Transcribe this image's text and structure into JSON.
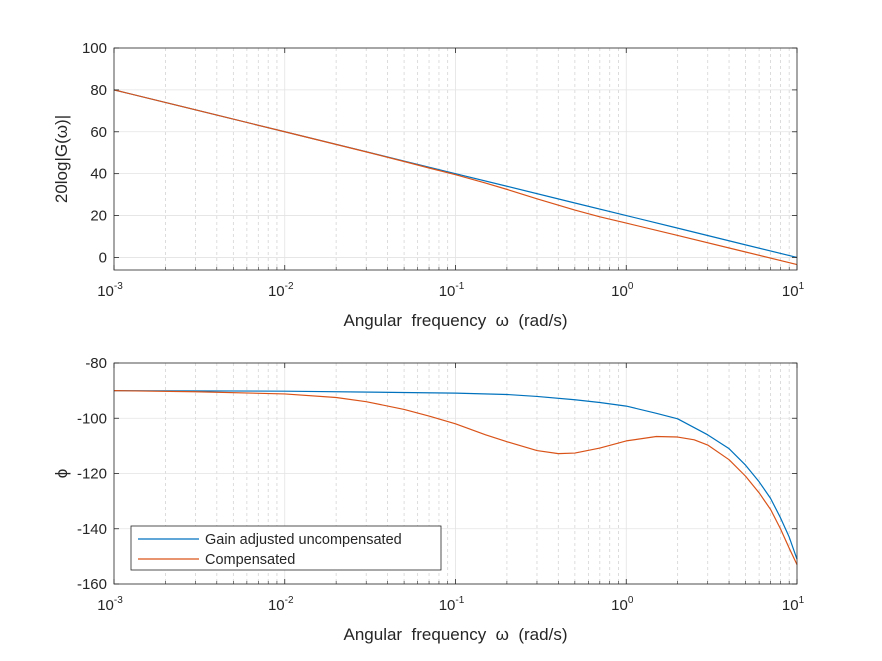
{
  "chart_data": [
    {
      "type": "line",
      "xscale": "log",
      "xlim": [
        0.001,
        10
      ],
      "ylim": [
        -6,
        100
      ],
      "xlabel": "Angular  frequency  ω  (rad/s)",
      "ylabel": "20log|G(ω)|",
      "x_ticks": [
        {
          "base": "10",
          "exp": "-3"
        },
        {
          "base": "10",
          "exp": "-2"
        },
        {
          "base": "10",
          "exp": "-1"
        },
        {
          "base": "10",
          "exp": "0"
        },
        {
          "base": "10",
          "exp": "1"
        }
      ],
      "y_ticks": [
        0,
        20,
        40,
        60,
        80,
        100
      ],
      "y_tick_labels": [
        "0",
        "20",
        "40",
        "60",
        "80",
        "100"
      ],
      "grid": true,
      "series": [
        {
          "color": "#0072BD",
          "x": [
            0.001,
            0.003,
            0.01,
            0.03,
            0.05,
            0.1,
            0.2,
            0.5,
            1,
            2,
            5,
            10
          ],
          "y": [
            80,
            70.5,
            60,
            50.5,
            46,
            40,
            34,
            26,
            20,
            14,
            6,
            0
          ]
        },
        {
          "color": "#D95319",
          "x": [
            0.001,
            0.003,
            0.01,
            0.03,
            0.05,
            0.07,
            0.1,
            0.15,
            0.2,
            0.3,
            0.5,
            0.7,
            1,
            2,
            5,
            10
          ],
          "y": [
            80,
            70.5,
            60,
            50.4,
            45.8,
            42.7,
            39.5,
            35.5,
            32.5,
            28,
            22.6,
            19.4,
            16.4,
            10.5,
            2.6,
            -3.4
          ]
        }
      ]
    },
    {
      "type": "line",
      "xscale": "log",
      "xlim": [
        0.001,
        10
      ],
      "ylim": [
        -160,
        -80
      ],
      "xlabel": "Angular  frequency  ω  (rad/s)",
      "ylabel": "ϕ",
      "x_ticks": [
        {
          "base": "10",
          "exp": "-3"
        },
        {
          "base": "10",
          "exp": "-2"
        },
        {
          "base": "10",
          "exp": "-1"
        },
        {
          "base": "10",
          "exp": "0"
        },
        {
          "base": "10",
          "exp": "1"
        }
      ],
      "y_ticks": [
        -160,
        -140,
        -120,
        -100,
        -80
      ],
      "y_tick_labels": [
        "-160",
        "-140",
        "-120",
        "-100",
        "-80"
      ],
      "grid": true,
      "legend": {
        "placement": "bottom-left"
      },
      "series": [
        {
          "name": "Gain adjusted uncompensated",
          "color": "#0072BD",
          "x": [
            0.001,
            0.01,
            0.1,
            0.2,
            0.3,
            0.5,
            0.7,
            1,
            1.5,
            2,
            3,
            4,
            5,
            6,
            7,
            8,
            9,
            10
          ],
          "y": [
            -90,
            -90.2,
            -90.9,
            -91.4,
            -92.1,
            -93.3,
            -94.3,
            -95.6,
            -98.2,
            -100.2,
            -106,
            -111,
            -117,
            -123,
            -129,
            -136,
            -143,
            -151
          ]
        },
        {
          "name": "Compensated",
          "color": "#D95319",
          "x": [
            0.001,
            0.003,
            0.01,
            0.02,
            0.03,
            0.05,
            0.07,
            0.1,
            0.15,
            0.2,
            0.3,
            0.4,
            0.5,
            0.7,
            1,
            1.5,
            2,
            2.5,
            3,
            4,
            5,
            6,
            7,
            8,
            9,
            10
          ],
          "y": [
            -90,
            -90.4,
            -91.2,
            -92.5,
            -94,
            -96.8,
            -99.2,
            -102,
            -106,
            -108.5,
            -111.7,
            -112.8,
            -112.6,
            -110.8,
            -108.2,
            -106.6,
            -106.8,
            -107.8,
            -109.7,
            -115,
            -121,
            -127,
            -133,
            -140,
            -147,
            -153
          ]
        }
      ]
    }
  ]
}
